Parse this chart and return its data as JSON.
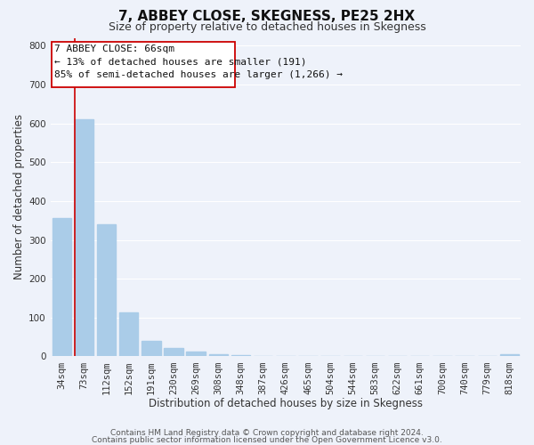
{
  "title": "7, ABBEY CLOSE, SKEGNESS, PE25 2HX",
  "subtitle": "Size of property relative to detached houses in Skegness",
  "xlabel": "Distribution of detached houses by size in Skegness",
  "ylabel": "Number of detached properties",
  "categories": [
    "34sqm",
    "73sqm",
    "112sqm",
    "152sqm",
    "191sqm",
    "230sqm",
    "269sqm",
    "308sqm",
    "348sqm",
    "387sqm",
    "426sqm",
    "465sqm",
    "504sqm",
    "544sqm",
    "583sqm",
    "622sqm",
    "661sqm",
    "700sqm",
    "740sqm",
    "779sqm",
    "818sqm"
  ],
  "values": [
    355,
    610,
    340,
    113,
    40,
    22,
    13,
    5,
    3,
    2,
    2,
    2,
    2,
    0,
    2,
    0,
    0,
    0,
    0,
    0,
    5
  ],
  "bar_color": "#aacce8",
  "vline_color": "#cc0000",
  "vline_index": 0.57,
  "ann_line1": "7 ABBEY CLOSE: 66sqm",
  "ann_line2": "← 13% of detached houses are smaller (191)",
  "ann_line3": "85% of semi-detached houses are larger (1,266) →",
  "ylim": [
    0,
    820
  ],
  "yticks": [
    0,
    100,
    200,
    300,
    400,
    500,
    600,
    700,
    800
  ],
  "footer_line1": "Contains HM Land Registry data © Crown copyright and database right 2024.",
  "footer_line2": "Contains public sector information licensed under the Open Government Licence v3.0.",
  "background_color": "#eef2fa",
  "grid_color": "#ffffff",
  "rect_edgecolor": "#cc0000",
  "rect_facecolor": "#ffffff",
  "title_fontsize": 11,
  "subtitle_fontsize": 9,
  "axis_label_fontsize": 8.5,
  "tick_fontsize": 7.5,
  "annotation_fontsize": 8,
  "footer_fontsize": 6.5
}
